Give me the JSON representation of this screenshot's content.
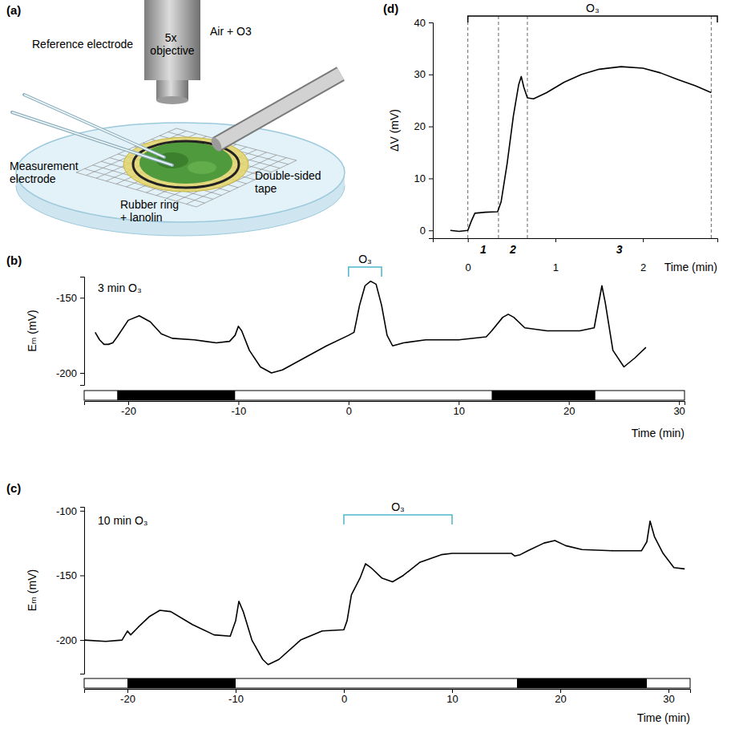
{
  "diagram": {
    "panel_label": "(a)",
    "labels": [
      "Reference electrode",
      "5x objective",
      "Air + O3",
      "Measurement electrode",
      "Rubber ring + lanolin",
      "Double-sided tape"
    ]
  },
  "chart_data": [
    {
      "type": "line",
      "panel_label": "(b)",
      "title": "3 min O₃",
      "xlabel": "Time (min)",
      "ylabel": "Eₘ (mV)",
      "color": "#000000",
      "x": [
        -23,
        -22.6,
        -22.2,
        -21.8,
        -21.4,
        -21,
        -20,
        -19,
        -18,
        -17,
        -16,
        -14,
        -12,
        -10.8,
        -10.3,
        -10,
        -9.7,
        -9,
        -8,
        -7,
        -6,
        -4,
        -2,
        0,
        0.5,
        1,
        1.5,
        2,
        2.5,
        3,
        3.5,
        4,
        5,
        7,
        10,
        12.5,
        13,
        14,
        14.5,
        15,
        16,
        18,
        21,
        22.3,
        22.6,
        23,
        23.3,
        24,
        25,
        26,
        27
      ],
      "values": [
        -173,
        -178,
        -181,
        -181,
        -180,
        -176,
        -165,
        -162,
        -166,
        -174,
        -177,
        -178,
        -180,
        -179,
        -175,
        -169,
        -172,
        -185,
        -196,
        -200,
        -198,
        -190,
        -182,
        -175,
        -173,
        -155,
        -142,
        -139,
        -141,
        -155,
        -175,
        -182,
        -180,
        -178,
        -178,
        -176,
        -172,
        -163,
        -161,
        -163,
        -170,
        -172,
        -172,
        -170,
        -158,
        -142,
        -153,
        -185,
        -196,
        -190,
        -183
      ],
      "xlim": [
        -24,
        30.5
      ],
      "xticks": [
        -20,
        -10,
        0,
        10,
        20,
        30
      ],
      "ylim": [
        -208,
        -136
      ],
      "yticks": [
        -200,
        -150
      ],
      "stimulus": {
        "label": "O₃",
        "start": 0,
        "end": 3
      },
      "dark_periods": [
        [
          -21,
          -10.3
        ],
        [
          13,
          22.4
        ]
      ]
    },
    {
      "type": "line",
      "panel_label": "(c)",
      "title": "10 min O₃",
      "xlabel": "Time (min)",
      "ylabel": "Eₘ (mV)",
      "color": "#000000",
      "x": [
        -24,
        -22,
        -20.5,
        -20,
        -19.7,
        -19,
        -18,
        -17,
        -16,
        -14,
        -12,
        -10.5,
        -10,
        -9.7,
        -9.3,
        -8.5,
        -7.5,
        -7,
        -6,
        -4,
        -2,
        0,
        0.3,
        0.7,
        1.5,
        2,
        2.5,
        3.5,
        4.5,
        5.5,
        7,
        9,
        10,
        12,
        15.5,
        15.8,
        16.3,
        17,
        18.5,
        19.5,
        20.5,
        22,
        25,
        27.5,
        28,
        28.3,
        28.7,
        29.5,
        30.5,
        31.5
      ],
      "values": [
        -200,
        -201,
        -200,
        -193,
        -196,
        -190,
        -182,
        -177,
        -178,
        -188,
        -196,
        -197,
        -185,
        -170,
        -178,
        -200,
        -215,
        -219,
        -215,
        -200,
        -193,
        -192,
        -185,
        -165,
        -152,
        -141,
        -144,
        -152,
        -155,
        -150,
        -140,
        -134,
        -133,
        -133,
        -133,
        -135,
        -134,
        -131,
        -125,
        -123,
        -127,
        -130,
        -131,
        -131,
        -124,
        -108,
        -120,
        -133,
        -144,
        -145
      ],
      "xlim": [
        -24,
        32
      ],
      "xticks": [
        -20,
        -10,
        0,
        10,
        20,
        30
      ],
      "ylim": [
        -226,
        -97
      ],
      "yticks": [
        -200,
        -150,
        -100
      ],
      "stimulus": {
        "label": "O₃",
        "start": 0,
        "end": 10
      },
      "dark_periods": [
        [
          -20,
          -10
        ],
        [
          16,
          28
        ]
      ]
    },
    {
      "type": "line",
      "panel_label": "(d)",
      "xlabel": "Time (min)",
      "ylabel": "ΔV (mV)",
      "color": "#000000",
      "x": [
        -0.2,
        -0.1,
        0,
        0.04,
        0.08,
        0.2,
        0.34,
        0.38,
        0.45,
        0.52,
        0.58,
        0.61,
        0.64,
        0.68,
        0.75,
        0.9,
        1.1,
        1.3,
        1.5,
        1.75,
        2.0,
        2.2,
        2.4,
        2.6,
        2.78
      ],
      "values": [
        0,
        -0.2,
        0,
        1.8,
        3.3,
        3.5,
        3.6,
        5.5,
        13,
        22,
        28,
        29.6,
        27.5,
        25.5,
        25.3,
        26.5,
        28.5,
        30,
        31,
        31.5,
        31.2,
        30.3,
        29,
        27.8,
        26.5
      ],
      "xlim": [
        -0.4,
        2.85
      ],
      "xticks": [
        0,
        1,
        2
      ],
      "ylim": [
        -1.5,
        40
      ],
      "yticks": [
        0,
        10,
        20,
        30,
        40
      ],
      "stimulus": {
        "label": "O₃",
        "start": 0,
        "end": 2.85
      },
      "phase_bounds": [
        0,
        0.35,
        0.68,
        2.78
      ],
      "phase_labels": [
        "1",
        "2",
        "3"
      ]
    }
  ]
}
